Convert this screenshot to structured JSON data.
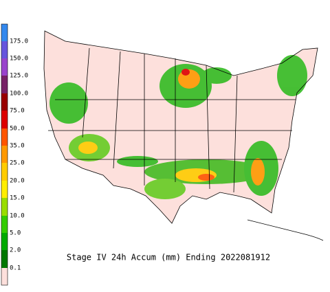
{
  "legend": {
    "labels": [
      "175.0",
      "150.0",
      "125.0",
      "100.0",
      "75.0",
      "50.0",
      "35.0",
      "25.0",
      "20.0",
      "15.0",
      "10.0",
      "5.0",
      "2.0",
      "0.1"
    ]
  },
  "title": "Stage IV 24h Accum (mm) Ending 2022081912"
}
